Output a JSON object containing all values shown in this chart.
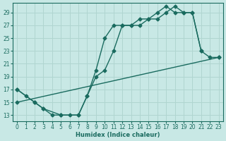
{
  "xlabel": "Humidex (Indice chaleur)",
  "bg_color": "#c8e8e5",
  "grid_color": "#b0d5d0",
  "line_color": "#1a6b5f",
  "xlim": [
    -0.5,
    23.5
  ],
  "ylim": [
    12,
    30.5
  ],
  "yticks": [
    13,
    15,
    17,
    19,
    21,
    23,
    25,
    27,
    29
  ],
  "xticks": [
    0,
    1,
    2,
    3,
    4,
    5,
    6,
    7,
    8,
    9,
    10,
    11,
    12,
    13,
    14,
    15,
    16,
    17,
    18,
    19,
    20,
    21,
    22,
    23
  ],
  "curve1_x": [
    0,
    1,
    2,
    3,
    4,
    5,
    6,
    7,
    8,
    9,
    10,
    11,
    12,
    13,
    14,
    15,
    16,
    17,
    18,
    19,
    20,
    21
  ],
  "curve1_y": [
    17,
    16,
    15,
    14,
    13,
    13,
    13,
    13,
    16,
    19,
    20,
    23,
    27,
    27,
    27,
    28,
    28,
    29,
    30,
    29,
    29,
    23
  ],
  "curve2_x": [
    0,
    2,
    3,
    5,
    7,
    8,
    9,
    10,
    11,
    12,
    13,
    14,
    15,
    16,
    17,
    18,
    19,
    20,
    21,
    22,
    23
  ],
  "curve2_y": [
    17,
    15,
    14,
    13,
    13,
    16,
    20,
    25,
    27,
    27,
    27,
    28,
    28,
    29,
    30,
    29,
    29,
    29,
    23,
    22,
    22
  ],
  "curve3_x": [
    0,
    23
  ],
  "curve3_y": [
    15,
    22
  ]
}
